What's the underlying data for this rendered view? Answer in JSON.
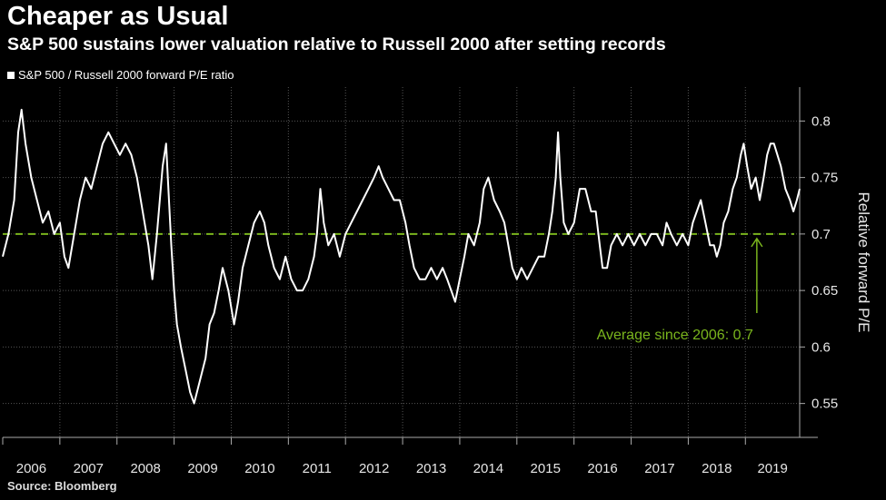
{
  "title": "Cheaper as Usual",
  "subtitle": "S&P 500 sustains lower valuation relative to Russell 2000 after setting records",
  "source": "Source: Bloomberg",
  "colors": {
    "background": "#000000",
    "line": "#ffffff",
    "average": "#7ab51d",
    "grid": "#555555"
  },
  "chart_data": {
    "type": "line",
    "legend": "S&P 500 / Russell 2000 forward P/E ratio",
    "legend_position": "top-left",
    "ylabel": "Relative forward P/E",
    "ylim": [
      0.52,
      0.83
    ],
    "y_ticks": [
      0.55,
      0.6,
      0.65,
      0.7,
      0.75,
      0.8
    ],
    "y_tick_labels": [
      "0.55",
      "0.6",
      "0.65",
      "0.7",
      "0.75",
      "0.8"
    ],
    "x_categories": [
      "2006",
      "2007",
      "2008",
      "2009",
      "2010",
      "2011",
      "2012",
      "2013",
      "2014",
      "2015",
      "2016",
      "2017",
      "2018",
      "2019"
    ],
    "xlim": [
      2006.0,
      2019.95
    ],
    "grid": true,
    "average": {
      "value": 0.7,
      "label": "Average since 2006: 0.7",
      "arrow_x": 2019.2
    },
    "series": [
      {
        "name": "S&P 500 / Russell 2000 forward P/E ratio",
        "points": [
          [
            2006.0,
            0.68
          ],
          [
            2006.1,
            0.7
          ],
          [
            2006.2,
            0.73
          ],
          [
            2006.27,
            0.79
          ],
          [
            2006.33,
            0.81
          ],
          [
            2006.4,
            0.78
          ],
          [
            2006.5,
            0.75
          ],
          [
            2006.6,
            0.73
          ],
          [
            2006.7,
            0.71
          ],
          [
            2006.8,
            0.72
          ],
          [
            2006.9,
            0.7
          ],
          [
            2007.0,
            0.71
          ],
          [
            2007.08,
            0.68
          ],
          [
            2007.15,
            0.67
          ],
          [
            2007.25,
            0.7
          ],
          [
            2007.35,
            0.73
          ],
          [
            2007.45,
            0.75
          ],
          [
            2007.55,
            0.74
          ],
          [
            2007.65,
            0.76
          ],
          [
            2007.75,
            0.78
          ],
          [
            2007.85,
            0.79
          ],
          [
            2007.95,
            0.78
          ],
          [
            2008.05,
            0.77
          ],
          [
            2008.15,
            0.78
          ],
          [
            2008.25,
            0.77
          ],
          [
            2008.35,
            0.75
          ],
          [
            2008.45,
            0.72
          ],
          [
            2008.55,
            0.69
          ],
          [
            2008.62,
            0.66
          ],
          [
            2008.7,
            0.7
          ],
          [
            2008.8,
            0.76
          ],
          [
            2008.86,
            0.78
          ],
          [
            2008.9,
            0.74
          ],
          [
            2008.95,
            0.69
          ],
          [
            2009.0,
            0.65
          ],
          [
            2009.05,
            0.62
          ],
          [
            2009.12,
            0.6
          ],
          [
            2009.2,
            0.58
          ],
          [
            2009.28,
            0.56
          ],
          [
            2009.35,
            0.55
          ],
          [
            2009.45,
            0.57
          ],
          [
            2009.55,
            0.59
          ],
          [
            2009.62,
            0.62
          ],
          [
            2009.7,
            0.63
          ],
          [
            2009.78,
            0.65
          ],
          [
            2009.85,
            0.67
          ],
          [
            2009.95,
            0.65
          ],
          [
            2010.05,
            0.62
          ],
          [
            2010.12,
            0.64
          ],
          [
            2010.2,
            0.67
          ],
          [
            2010.3,
            0.69
          ],
          [
            2010.4,
            0.71
          ],
          [
            2010.5,
            0.72
          ],
          [
            2010.58,
            0.71
          ],
          [
            2010.65,
            0.69
          ],
          [
            2010.75,
            0.67
          ],
          [
            2010.85,
            0.66
          ],
          [
            2010.95,
            0.68
          ],
          [
            2011.05,
            0.66
          ],
          [
            2011.15,
            0.65
          ],
          [
            2011.25,
            0.65
          ],
          [
            2011.35,
            0.66
          ],
          [
            2011.45,
            0.68
          ],
          [
            2011.5,
            0.7
          ],
          [
            2011.56,
            0.74
          ],
          [
            2011.62,
            0.71
          ],
          [
            2011.7,
            0.69
          ],
          [
            2011.8,
            0.7
          ],
          [
            2011.9,
            0.68
          ],
          [
            2012.0,
            0.7
          ],
          [
            2012.1,
            0.71
          ],
          [
            2012.2,
            0.72
          ],
          [
            2012.3,
            0.73
          ],
          [
            2012.4,
            0.74
          ],
          [
            2012.5,
            0.75
          ],
          [
            2012.58,
            0.76
          ],
          [
            2012.65,
            0.75
          ],
          [
            2012.75,
            0.74
          ],
          [
            2012.85,
            0.73
          ],
          [
            2012.95,
            0.73
          ],
          [
            2013.05,
            0.71
          ],
          [
            2013.12,
            0.69
          ],
          [
            2013.2,
            0.67
          ],
          [
            2013.3,
            0.66
          ],
          [
            2013.4,
            0.66
          ],
          [
            2013.5,
            0.67
          ],
          [
            2013.6,
            0.66
          ],
          [
            2013.7,
            0.67
          ],
          [
            2013.78,
            0.66
          ],
          [
            2013.85,
            0.65
          ],
          [
            2013.92,
            0.64
          ],
          [
            2014.0,
            0.66
          ],
          [
            2014.08,
            0.68
          ],
          [
            2014.15,
            0.7
          ],
          [
            2014.25,
            0.69
          ],
          [
            2014.35,
            0.71
          ],
          [
            2014.42,
            0.74
          ],
          [
            2014.5,
            0.75
          ],
          [
            2014.6,
            0.73
          ],
          [
            2014.7,
            0.72
          ],
          [
            2014.78,
            0.71
          ],
          [
            2014.85,
            0.69
          ],
          [
            2014.92,
            0.67
          ],
          [
            2015.0,
            0.66
          ],
          [
            2015.08,
            0.67
          ],
          [
            2015.18,
            0.66
          ],
          [
            2015.28,
            0.67
          ],
          [
            2015.38,
            0.68
          ],
          [
            2015.48,
            0.68
          ],
          [
            2015.56,
            0.7
          ],
          [
            2015.62,
            0.72
          ],
          [
            2015.68,
            0.75
          ],
          [
            2015.72,
            0.79
          ],
          [
            2015.76,
            0.75
          ],
          [
            2015.82,
            0.71
          ],
          [
            2015.9,
            0.7
          ],
          [
            2016.0,
            0.71
          ],
          [
            2016.1,
            0.74
          ],
          [
            2016.2,
            0.74
          ],
          [
            2016.3,
            0.72
          ],
          [
            2016.38,
            0.72
          ],
          [
            2016.45,
            0.69
          ],
          [
            2016.5,
            0.67
          ],
          [
            2016.58,
            0.67
          ],
          [
            2016.65,
            0.69
          ],
          [
            2016.75,
            0.7
          ],
          [
            2016.85,
            0.69
          ],
          [
            2016.95,
            0.7
          ],
          [
            2017.05,
            0.69
          ],
          [
            2017.15,
            0.7
          ],
          [
            2017.25,
            0.69
          ],
          [
            2017.35,
            0.7
          ],
          [
            2017.45,
            0.7
          ],
          [
            2017.55,
            0.69
          ],
          [
            2017.62,
            0.71
          ],
          [
            2017.7,
            0.7
          ],
          [
            2017.8,
            0.69
          ],
          [
            2017.9,
            0.7
          ],
          [
            2018.0,
            0.69
          ],
          [
            2018.08,
            0.71
          ],
          [
            2018.15,
            0.72
          ],
          [
            2018.22,
            0.73
          ],
          [
            2018.3,
            0.71
          ],
          [
            2018.38,
            0.69
          ],
          [
            2018.45,
            0.69
          ],
          [
            2018.5,
            0.68
          ],
          [
            2018.56,
            0.69
          ],
          [
            2018.62,
            0.71
          ],
          [
            2018.7,
            0.72
          ],
          [
            2018.78,
            0.74
          ],
          [
            2018.85,
            0.75
          ],
          [
            2018.92,
            0.77
          ],
          [
            2018.97,
            0.78
          ],
          [
            2019.03,
            0.76
          ],
          [
            2019.1,
            0.74
          ],
          [
            2019.18,
            0.75
          ],
          [
            2019.25,
            0.73
          ],
          [
            2019.32,
            0.75
          ],
          [
            2019.38,
            0.77
          ],
          [
            2019.44,
            0.78
          ],
          [
            2019.5,
            0.78
          ],
          [
            2019.56,
            0.77
          ],
          [
            2019.62,
            0.76
          ],
          [
            2019.7,
            0.74
          ],
          [
            2019.78,
            0.73
          ],
          [
            2019.84,
            0.72
          ],
          [
            2019.9,
            0.73
          ],
          [
            2019.95,
            0.74
          ]
        ]
      }
    ]
  }
}
